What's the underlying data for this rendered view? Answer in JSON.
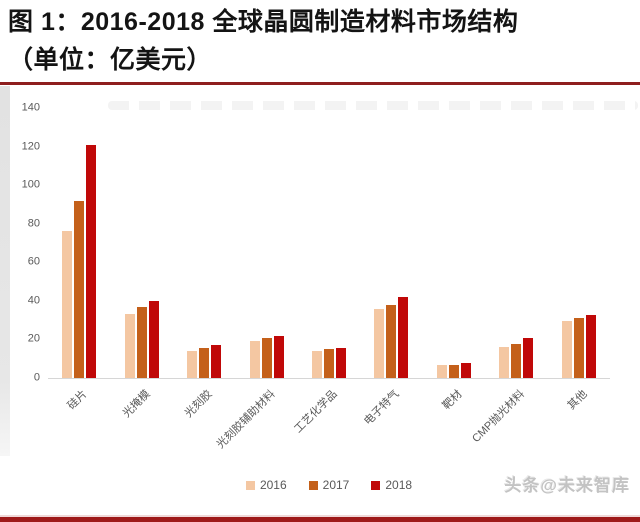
{
  "title": {
    "line1": "图 1：2016-2018 全球晶圆制造材料市场结构",
    "line2": "（单位：亿美元）"
  },
  "watermark": {
    "bottom_right": "头条@未来智库"
  },
  "colors": {
    "rule_top": "#8e1e1e",
    "rule_bottom": "#9e1a1a",
    "axis_text": "#595959",
    "baseline": "#d6d6d6"
  },
  "chart_data": {
    "type": "bar",
    "title": "2016-2018 全球晶圆制造材料市场结构",
    "unit": "亿美元",
    "categories": [
      "硅片",
      "光掩模",
      "光刻胶",
      "光刻胶辅助材料",
      "工艺化学品",
      "电子特气",
      "靶材",
      "CMP抛光材料",
      "其他"
    ],
    "series": [
      {
        "name": "2016",
        "color": "#f4c7a2",
        "values": [
          76,
          33,
          14,
          19,
          14,
          36,
          6.5,
          16,
          29.5
        ]
      },
      {
        "name": "2017",
        "color": "#c4601a",
        "values": [
          92,
          37,
          15.5,
          20.5,
          15,
          38,
          7,
          17.5,
          31
        ]
      },
      {
        "name": "2018",
        "color": "#c00808",
        "values": [
          121,
          40,
          17,
          22,
          15.5,
          42,
          8,
          21,
          32.5
        ]
      }
    ],
    "ylim": [
      0,
      140
    ],
    "yticks": [
      0,
      20,
      40,
      60,
      80,
      100,
      120,
      140
    ],
    "grid": false,
    "legend_position": "bottom",
    "xlabel": "",
    "ylabel": ""
  }
}
